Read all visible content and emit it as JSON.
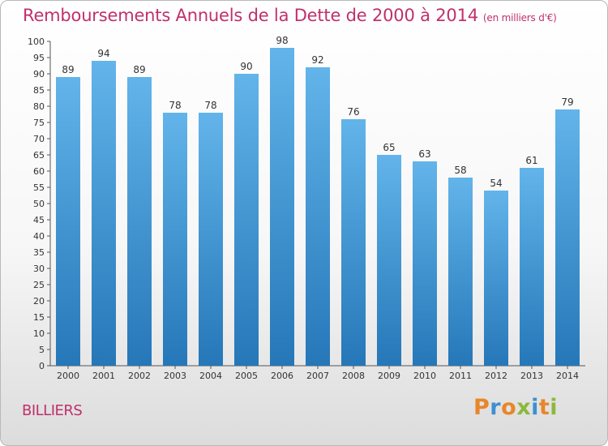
{
  "header": {
    "title": "Remboursements Annuels de la Dette de 2000 à 2014",
    "unit": "(en milliers d'€)"
  },
  "footer": {
    "place": "BILLIERS",
    "logo": "Proxiti"
  },
  "colors": {
    "title": "#c0306c",
    "bar_top": "#62b4ea",
    "bar_bottom": "#2577b8",
    "logo_letters": [
      "#e8862a",
      "#3d8fd1",
      "#e8862a",
      "#8ab93c",
      "#3d8fd1",
      "#e8862a",
      "#8ab93c"
    ]
  },
  "chart_data": {
    "type": "bar",
    "categories": [
      "2000",
      "2001",
      "2002",
      "2003",
      "2004",
      "2005",
      "2006",
      "2007",
      "2008",
      "2009",
      "2010",
      "2011",
      "2012",
      "2013",
      "2014"
    ],
    "values": [
      89,
      94,
      89,
      78,
      78,
      90,
      98,
      92,
      76,
      65,
      63,
      58,
      54,
      61,
      79
    ],
    "title": "Remboursements Annuels de la Dette de 2000 à 2014",
    "ylim": [
      0,
      100
    ],
    "ytick_step": 5,
    "grid": false,
    "legend": "none"
  }
}
